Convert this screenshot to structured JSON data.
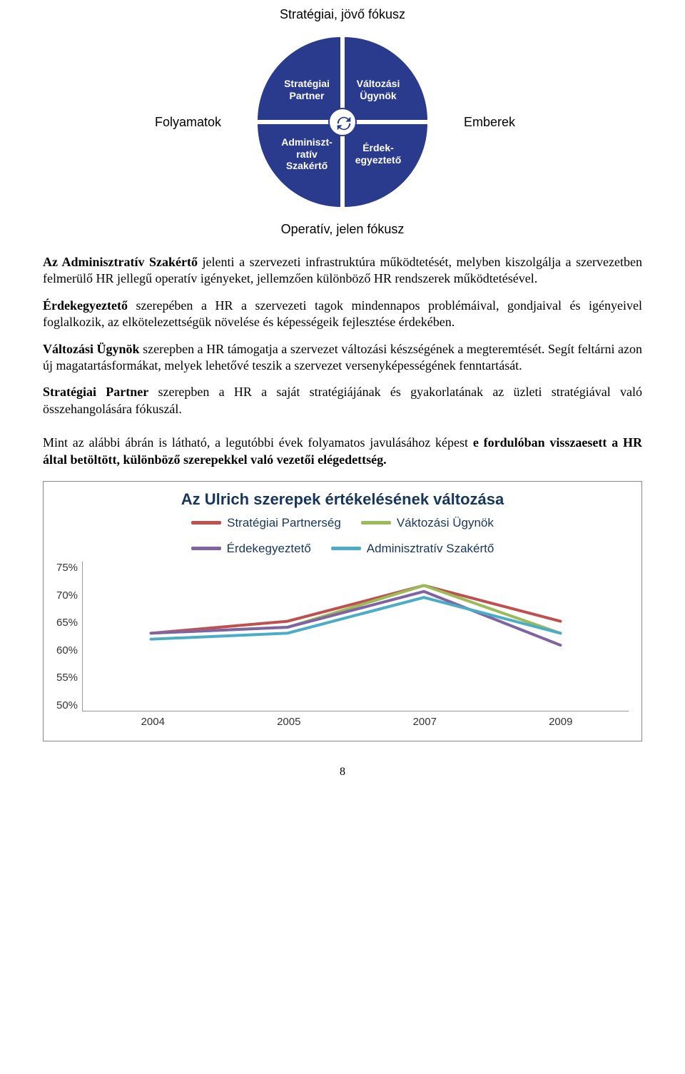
{
  "diagram": {
    "top_caption": "Stratégiai, jövő fókusz",
    "left_label": "Folyamatok",
    "right_label": "Emberek",
    "bottom_caption": "Operatív, jelen fókusz",
    "quadrant_color": "#2a3a8c",
    "quadrant_text_color": "#ffffff",
    "quadrants": {
      "tl": "Stratégiai Partner",
      "tr": "Változási Ügynök",
      "bl": "Adminiszt-ratív Szakértő",
      "br": "Érdek-egyeztető"
    }
  },
  "paragraphs": {
    "p1_bold": "Az Adminisztratív Szakértő",
    "p1_rest": " jelenti a szervezeti infrastruktúra működtetését, melyben kiszolgálja a szervezetben felmerülő HR jellegű operatív igényeket, jellemzően különböző HR rendszerek működtetésével.",
    "p2_bold": "Érdekegyeztető",
    "p2_rest": " szerepében a HR a szervezeti tagok mindennapos problémáival, gondjaival és igényeivel foglalkozik, az elkötelezettségük növelése és képességeik fejlesztése érdekében.",
    "p3_bold": "Változási Ügynök",
    "p3_rest": " szerepben a HR támogatja a szervezet változási készségének a megteremtését. Segít feltárni azon új magatartásformákat, melyek lehetővé teszik a szervezet versenyképességének fenntartását.",
    "p4_bold": "Stratégiai Partner",
    "p4_rest": " szerepben a HR a saját stratégiájának és gyakorlatának az üzleti stratégiával való összehangolására fókuszál.",
    "outro_pre": "Mint az alábbi ábrán is látható, a legutóbbi évek folyamatos javulásához képest ",
    "outro_bold": "e fordulóban visszaesett a HR által betöltött, különböző szerepekkel való vezetői elégedettség.",
    "outro_post": ""
  },
  "chart": {
    "title": "Az Ulrich szerepek értékelésének változása",
    "title_color": "#17365d",
    "title_fontsize": 22,
    "legend_text_color": "#17365d",
    "series": [
      {
        "name": "Stratégiai Partnerség",
        "color": "#c0504d",
        "values": [
          63,
          65,
          71,
          65
        ]
      },
      {
        "name": "Váktozási Ügynök",
        "color": "#9bbb59",
        "values": [
          63,
          64,
          71,
          63
        ]
      },
      {
        "name": "Érdekegyeztető",
        "color": "#8064a2",
        "values": [
          63,
          64,
          70,
          61
        ]
      },
      {
        "name": "Adminisztratív Szakértő",
        "color": "#4bacc6",
        "values": [
          62,
          63,
          69,
          63
        ]
      }
    ],
    "x_labels": [
      "2004",
      "2005",
      "2007",
      "2009"
    ],
    "y_ticks": [
      "75%",
      "70%",
      "65%",
      "60%",
      "55%",
      "50%"
    ],
    "ylim": [
      50,
      75
    ],
    "line_width": 4,
    "background_color": "#ffffff",
    "border_color": "#888888"
  },
  "page_number": "8"
}
